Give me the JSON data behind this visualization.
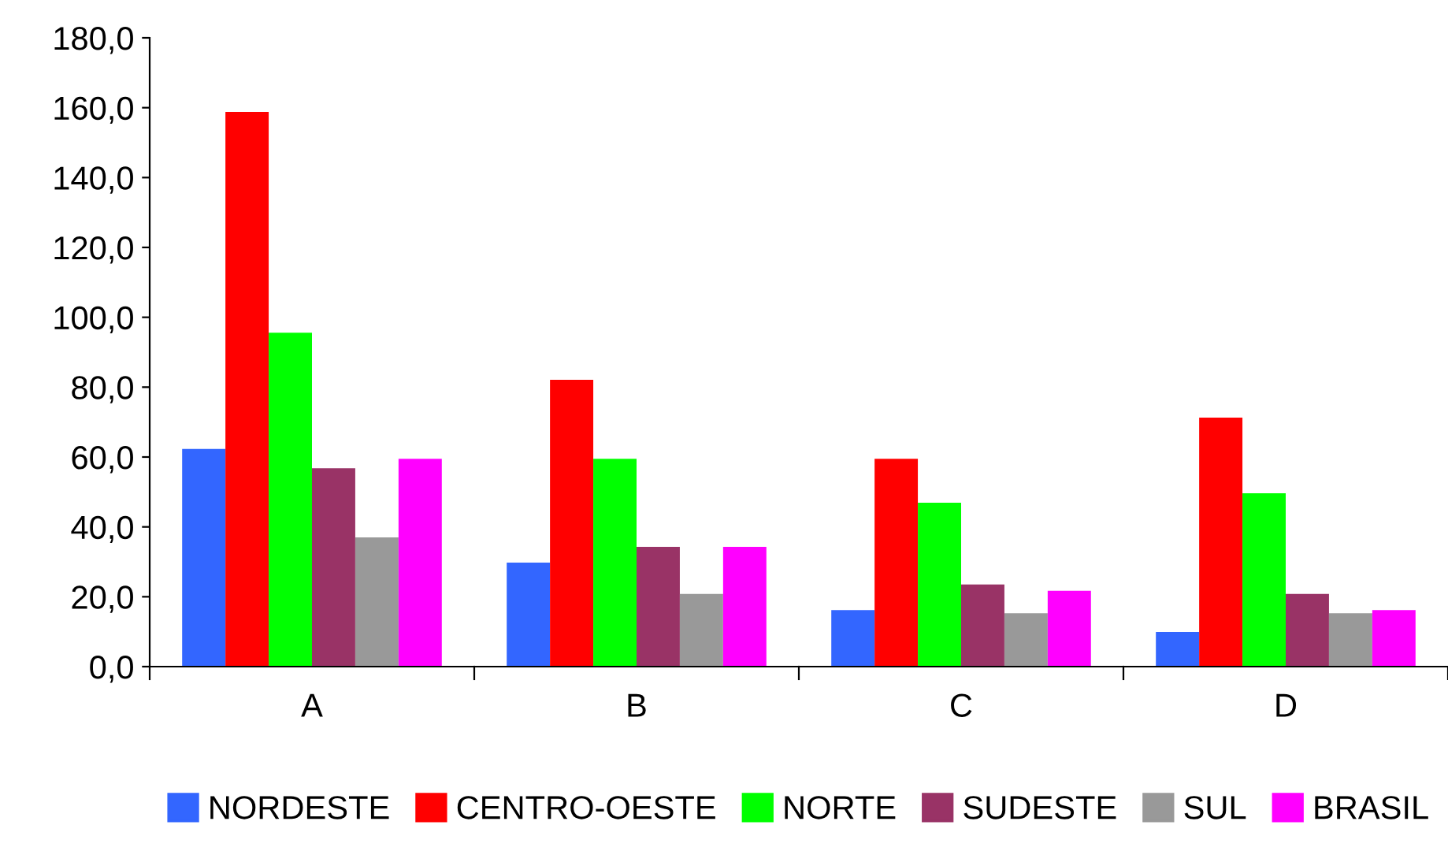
{
  "chart_data": {
    "type": "bar",
    "categories": [
      "A",
      "B",
      "C",
      "D"
    ],
    "series": [
      {
        "name": "NORDESTE",
        "color": "#3366ff",
        "values": [
          62.3,
          29.8,
          16.2,
          9.9
        ]
      },
      {
        "name": "CENTRO-OESTE",
        "color": "#ff0000",
        "values": [
          158.8,
          82.1,
          59.5,
          71.3
        ]
      },
      {
        "name": "NORTE",
        "color": "#00ff00",
        "values": [
          95.6,
          59.5,
          46.9,
          49.6
        ]
      },
      {
        "name": "SUDESTE",
        "color": "#993366",
        "values": [
          56.8,
          34.3,
          23.5,
          20.8
        ]
      },
      {
        "name": "SUL",
        "color": "#999999",
        "values": [
          37.0,
          20.8,
          15.3,
          15.3
        ]
      },
      {
        "name": "BRASIL",
        "color": "#ff00ff",
        "values": [
          59.5,
          34.3,
          21.7,
          16.2
        ]
      }
    ],
    "ylim": [
      0,
      180
    ],
    "yticks": [
      {
        "value": 0,
        "label": "0,0"
      },
      {
        "value": 20,
        "label": "20,0"
      },
      {
        "value": 40,
        "label": "40,0"
      },
      {
        "value": 60,
        "label": "60,0"
      },
      {
        "value": 80,
        "label": "80,0"
      },
      {
        "value": 100,
        "label": "100,0"
      },
      {
        "value": 120,
        "label": "120,0"
      },
      {
        "value": 140,
        "label": "140,0"
      },
      {
        "value": 160,
        "label": "160,0"
      },
      {
        "value": 180,
        "label": "180,0"
      }
    ],
    "grid": false,
    "legend": "bottom"
  }
}
